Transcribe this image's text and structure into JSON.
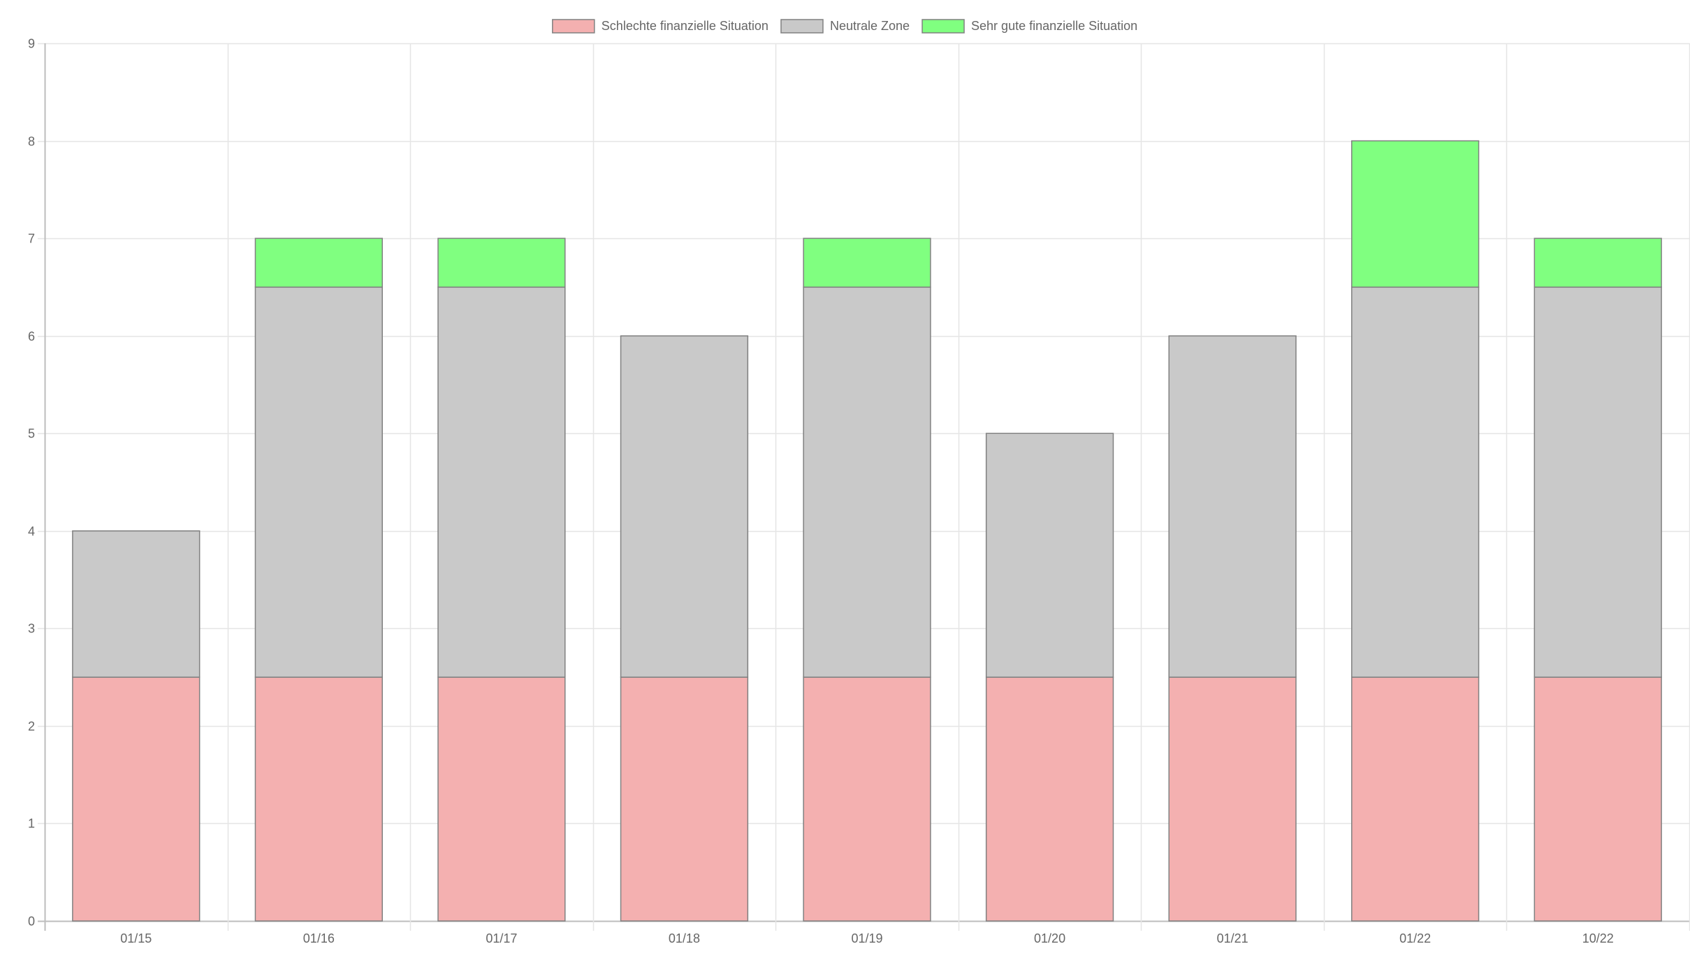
{
  "chart_data": {
    "type": "bar",
    "stacked": true,
    "title": "",
    "xlabel": "",
    "ylabel": "",
    "categories": [
      "01/15",
      "01/16",
      "01/17",
      "01/18",
      "01/19",
      "01/20",
      "01/21",
      "01/22",
      "10/22"
    ],
    "ylim": [
      0,
      9
    ],
    "yticks": [
      0,
      1,
      2,
      3,
      4,
      5,
      6,
      7,
      8,
      9
    ],
    "grid": true,
    "legend_position": "top-center",
    "series": [
      {
        "name": "Schlechte finanzielle Situation",
        "color": "#f4b0b0",
        "values": [
          2.5,
          2.5,
          2.5,
          2.5,
          2.5,
          2.5,
          2.5,
          2.5,
          2.5
        ]
      },
      {
        "name": "Neutrale Zone",
        "color": "#c9c9c9",
        "values": [
          1.5,
          4,
          4,
          3.5,
          4,
          2.5,
          3.5,
          4,
          4
        ]
      },
      {
        "name": "Sehr gute finanzielle Situation",
        "color": "#80ff80",
        "values": [
          0,
          0.5,
          0.5,
          0,
          0.5,
          0,
          0,
          1.5,
          0.5
        ]
      }
    ],
    "colors": {
      "bar_border": "#808080",
      "grid": "#e5e5e5",
      "axis": "#bdbdbd",
      "text": "#666666"
    }
  }
}
